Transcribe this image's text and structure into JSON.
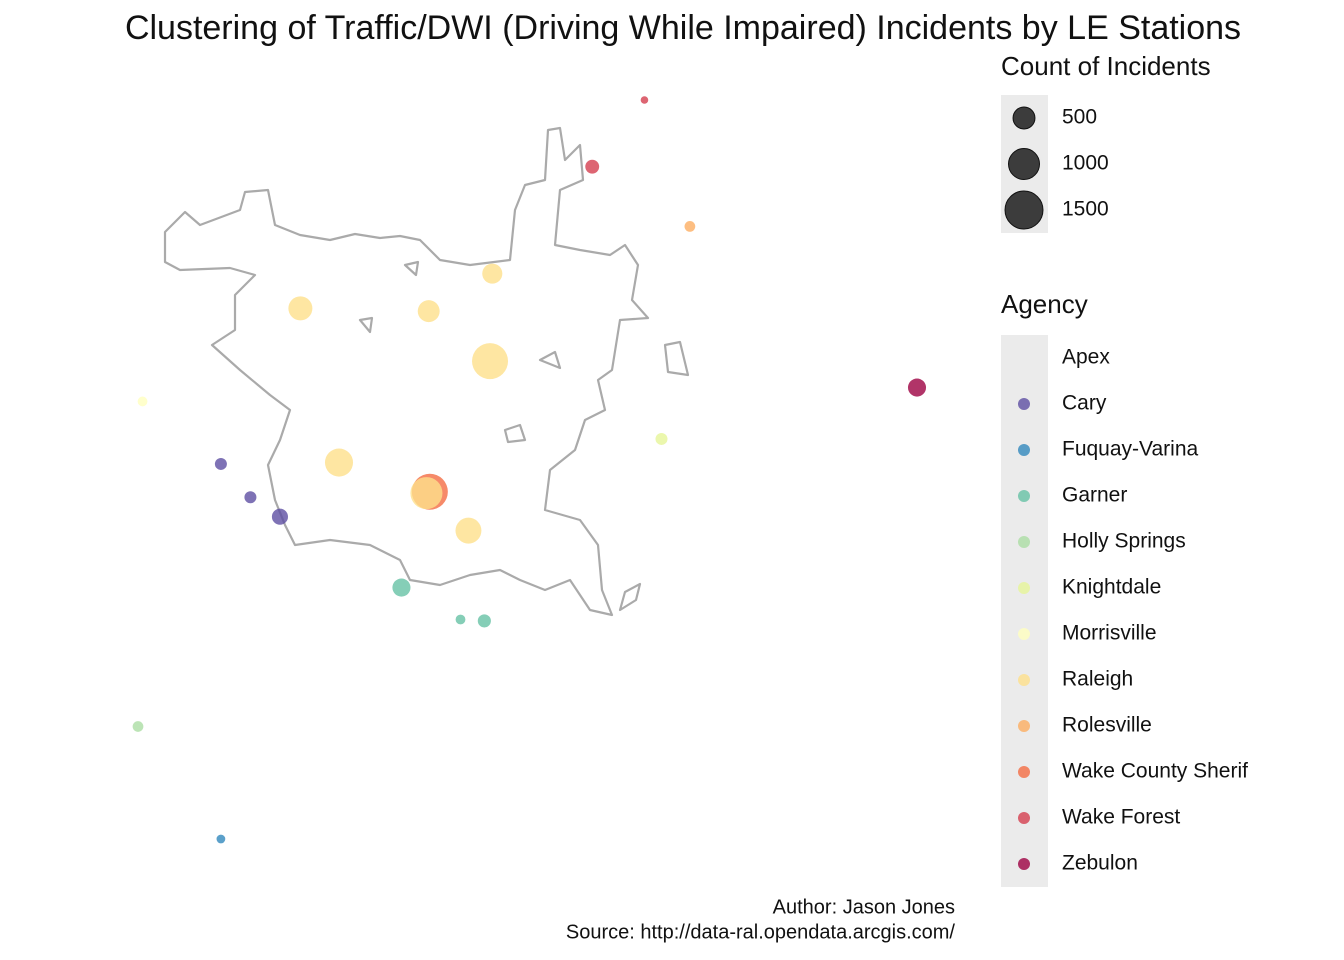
{
  "chart_data": {
    "type": "bubble-map",
    "title": "Clustering of Traffic/DWI (Driving While Impaired) Incidents by LE Stations",
    "caption": [
      "Author: Jason Jones",
      "Source: http://data-ral.opendata.arcgis.com/"
    ],
    "size_legend_title": "Count of Incidents",
    "size_breaks": [
      500,
      1000,
      1500
    ],
    "color_legend_title": "Agency",
    "series": [
      {
        "name": "Apex",
        "x": [],
        "y": [],
        "values": []
      },
      {
        "name": "Cary",
        "color": "#5E4FA2",
        "x": [
          -78.881,
          -78.855,
          -78.829
        ],
        "y": [
          35.728,
          35.704,
          35.69
        ],
        "values": [
          150,
          150,
          270
        ]
      },
      {
        "name": "Fuquay-Varina",
        "color": "#3288BD",
        "x": [
          -78.881
        ],
        "y": [
          35.458
        ],
        "values": [
          80
        ]
      },
      {
        "name": "Garner",
        "color": "#66C2A5",
        "x": [
          -78.722,
          -78.67,
          -78.649
        ],
        "y": [
          35.639,
          35.616,
          35.615
        ],
        "values": [
          340,
          100,
          180
        ]
      },
      {
        "name": "Holly Springs",
        "color": "#ABDDA4",
        "x": [
          -78.954
        ],
        "y": [
          35.539
        ],
        "values": [
          120
        ]
      },
      {
        "name": "Knightdale",
        "color": "#E6F598",
        "x": [
          -78.493
        ],
        "y": [
          35.746
        ],
        "values": [
          150
        ]
      },
      {
        "name": "Morrisville",
        "color": "#FFFFBF",
        "x": [
          -78.95
        ],
        "y": [
          35.773
        ],
        "values": [
          100
        ]
      },
      {
        "name": "Raleigh",
        "color": "#FEE08B",
        "x": [
          -78.642,
          -78.811,
          -78.698,
          -78.644,
          -78.777,
          -78.7,
          -78.663
        ],
        "y": [
          35.865,
          35.84,
          35.838,
          35.802,
          35.729,
          35.707,
          35.68
        ],
        "values": [
          420,
          600,
          500,
          1350,
          820,
          1070,
          700
        ]
      },
      {
        "name": "Rolesville",
        "color": "#FDAE61",
        "x": [
          -78.468
        ],
        "y": [
          35.899
        ],
        "values": [
          120
        ]
      },
      {
        "name": "Wake County Sherif",
        "color": "#F46D43",
        "x": [
          -78.697
        ],
        "y": [
          35.708
        ],
        "values": [
          1350
        ]
      },
      {
        "name": "Wake Forest",
        "color": "#D53E4F",
        "x": [
          -78.508,
          -78.554
        ],
        "y": [
          35.99,
          35.942
        ],
        "values": [
          60,
          200
        ]
      },
      {
        "name": "Zebulon",
        "color": "#9E0142",
        "x": [
          -78.268
        ],
        "y": [
          35.783
        ],
        "values": [
          340
        ]
      }
    ]
  }
}
